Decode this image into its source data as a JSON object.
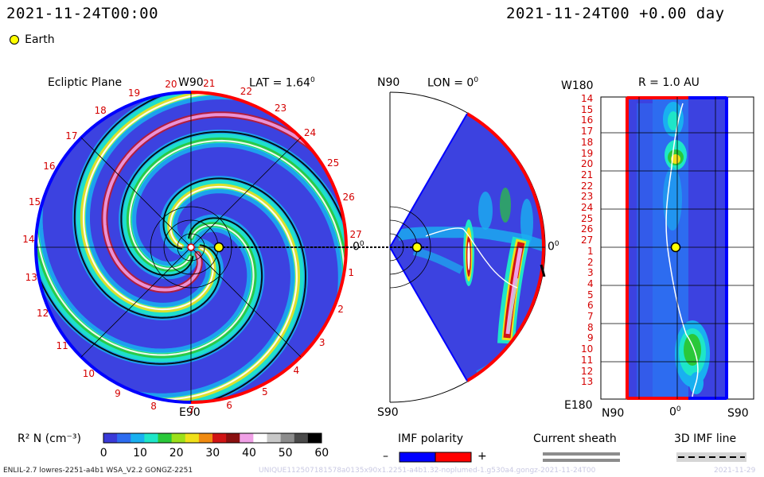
{
  "header": {
    "timestamp": "2021-11-24T00:00",
    "timestamp_right": "2021-11-24T00 +0.00 day"
  },
  "legend": {
    "earth_label": "Earth"
  },
  "ecliptic_panel": {
    "title": "Ecliptic Plane",
    "top_label": "W90",
    "lat_label": "LAT = 1.64",
    "lat_degree": "0",
    "bottom_label": "E90",
    "right_label": "0",
    "right_label_deg": "0",
    "rim_numbers": [
      "20",
      "21",
      "22",
      "23",
      "24",
      "25",
      "26",
      "27",
      "1",
      "2",
      "3",
      "4",
      "5",
      "6",
      "7",
      "8",
      "9",
      "10",
      "11",
      "12",
      "13",
      "14",
      "15",
      "16",
      "17",
      "18",
      "19"
    ]
  },
  "meridional_panel": {
    "top_label": "N90",
    "lon_label": "LON = 0",
    "lon_degree": "0",
    "bottom_label": "S90",
    "right_label": "0",
    "right_label_deg": "0"
  },
  "radial_panel": {
    "top_left_label": "W180",
    "r_label": "R = 1.0 AU",
    "bottom_left_label": "E180",
    "x_labels": [
      "N90",
      "0",
      "S90"
    ],
    "x_mid_deg": "0",
    "y_labels": [
      "14",
      "15",
      "16",
      "17",
      "18",
      "19",
      "20",
      "21",
      "22",
      "23",
      "24",
      "25",
      "26",
      "27",
      "1",
      "2",
      "3",
      "4",
      "5",
      "6",
      "7",
      "8",
      "9",
      "10",
      "11",
      "12",
      "13"
    ]
  },
  "colorbar": {
    "label": "R² N (cm⁻³)",
    "ticks": [
      "0",
      "10",
      "20",
      "30",
      "40",
      "50",
      "60"
    ],
    "colors": [
      "#3a3ad8",
      "#2d6cf0",
      "#19b0f0",
      "#1ee6c8",
      "#2ac83a",
      "#9ce01a",
      "#f0e01a",
      "#f08a10",
      "#d01414",
      "#8a1010",
      "#f0a0e6",
      "#ffffff",
      "#c8c8c8",
      "#8c8c8c",
      "#4a4a4a",
      "#000000"
    ]
  },
  "imf_polarity": {
    "label": "IMF polarity",
    "minus": "–",
    "plus": "+",
    "neg_color": "#0000ff",
    "pos_color": "#ff0000"
  },
  "current_sheath": {
    "label": "Current sheath"
  },
  "imf_line": {
    "label": "3D IMF line"
  },
  "footer": {
    "model_info": "ENLIL-2.7 lowres-2251-a4b1 WSA_V2.2 GONGZ-2251",
    "watermark": "UNIQUE112507181578a0135x90x1.2251-a4b1.32-noplumed-1.g530a4.gongz-2021-11-24T00",
    "watermark_right": "2021-11-29"
  }
}
